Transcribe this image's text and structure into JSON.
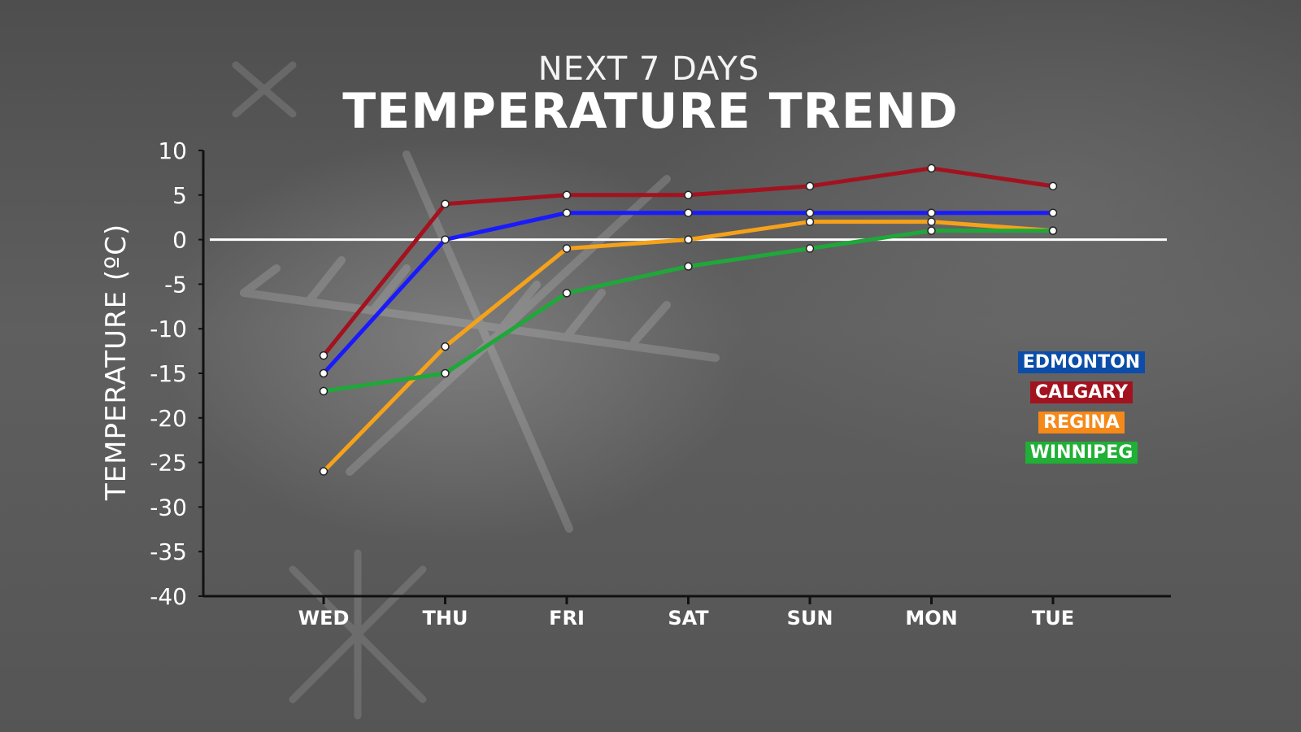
{
  "header": {
    "subtitle": "NEXT 7 DAYS",
    "title": "TEMPERATURE TREND"
  },
  "chart_data": {
    "type": "line",
    "title": "TEMPERATURE TREND",
    "subtitle": "NEXT 7 DAYS",
    "xlabel": "",
    "ylabel": "TEMPERATURE (ºC)",
    "categories": [
      "WED",
      "THU",
      "FRI",
      "SAT",
      "SUN",
      "MON",
      "TUE"
    ],
    "ylim": [
      -40,
      10
    ],
    "yticks": [
      "10",
      "5",
      "0",
      "-5",
      "-10",
      "-15",
      "-20",
      "-25",
      "-30",
      "-35",
      "-40"
    ],
    "zero_line": true,
    "legend_position": "right",
    "series": [
      {
        "name": "CALGARY",
        "color": "#a3121f",
        "values": [
          -13,
          4,
          5,
          5,
          6,
          8,
          6
        ]
      },
      {
        "name": "EDMONTON",
        "color": "#1a1aff",
        "values": [
          -15,
          0,
          3,
          3,
          3,
          3,
          3
        ]
      },
      {
        "name": "REGINA",
        "color": "#f5a21a",
        "values": [
          -26,
          -12,
          -1,
          0,
          2,
          2,
          1
        ]
      },
      {
        "name": "WINNIPEG",
        "color": "#1fa83a",
        "values": [
          -17,
          -15,
          -6,
          -3,
          -1,
          1,
          1
        ]
      }
    ],
    "legend": [
      {
        "label": "EDMONTON",
        "color": "#0b4da8"
      },
      {
        "label": "CALGARY",
        "color": "#a3121f"
      },
      {
        "label": "REGINA",
        "color": "#f5891a"
      },
      {
        "label": "WINNIPEG",
        "color": "#1fb035"
      }
    ]
  }
}
